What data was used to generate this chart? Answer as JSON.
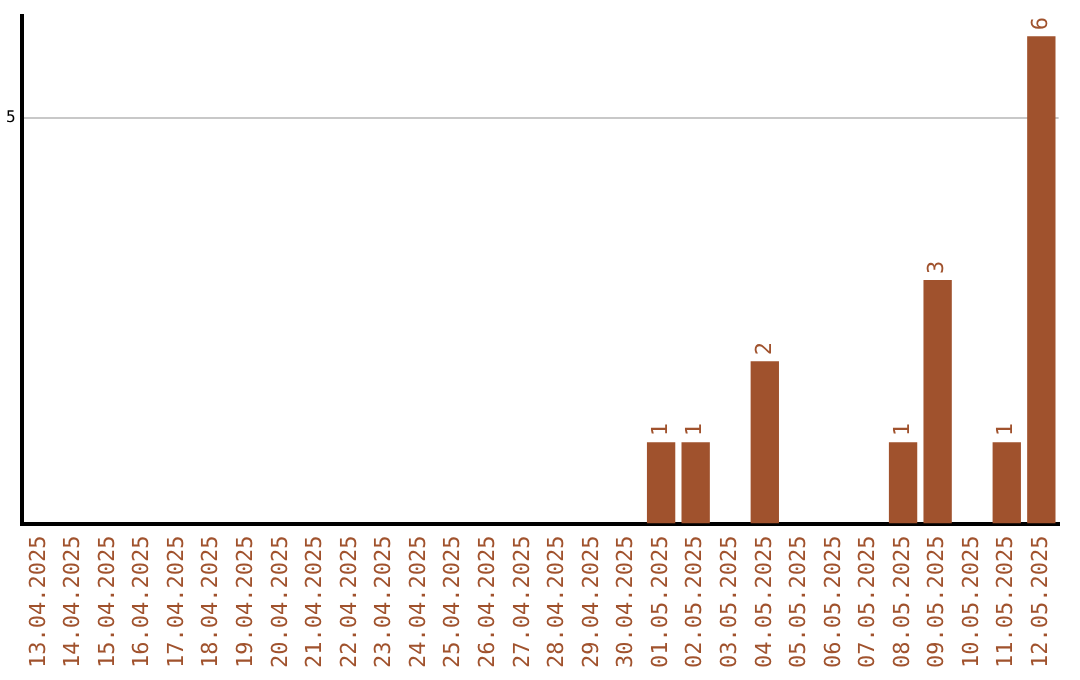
{
  "chart_data": {
    "type": "bar",
    "categories": [
      "13.04.2025",
      "14.04.2025",
      "15.04.2025",
      "16.04.2025",
      "17.04.2025",
      "18.04.2025",
      "19.04.2025",
      "20.04.2025",
      "21.04.2025",
      "22.04.2025",
      "23.04.2025",
      "24.04.2025",
      "25.04.2025",
      "26.04.2025",
      "27.04.2025",
      "28.04.2025",
      "29.04.2025",
      "30.04.2025",
      "01.05.2025",
      "02.05.2025",
      "03.05.2025",
      "04.05.2025",
      "05.05.2025",
      "06.05.2025",
      "07.05.2025",
      "08.05.2025",
      "09.05.2025",
      "10.05.2025",
      "11.05.2025",
      "12.05.2025"
    ],
    "values": [
      null,
      null,
      null,
      null,
      null,
      null,
      null,
      null,
      null,
      null,
      null,
      null,
      null,
      null,
      null,
      null,
      null,
      null,
      1,
      1,
      null,
      2,
      null,
      null,
      null,
      1,
      3,
      null,
      1,
      6
    ],
    "data_labels": true,
    "color": "#a0522d",
    "ylim": [
      0,
      6.25
    ],
    "yticks": [
      5
    ],
    "grid": "y",
    "legend": false
  }
}
